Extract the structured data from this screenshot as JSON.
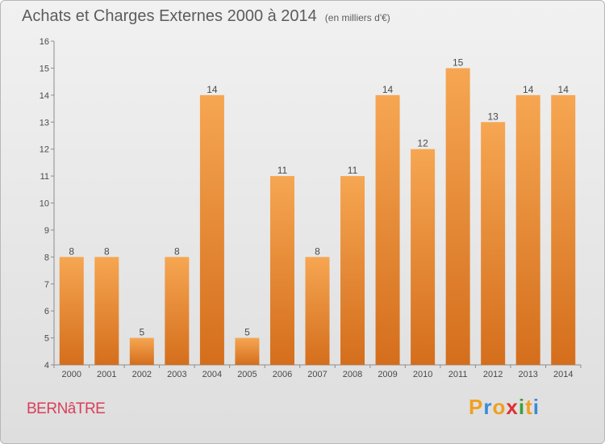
{
  "header": {
    "title": "Achats et Charges Externes 2000 à 2014",
    "unit": "(en milliers d'€)"
  },
  "footer": {
    "place": "BERNâTRE",
    "logo_letters": [
      "P",
      "r",
      "o",
      "x",
      "i",
      "t",
      "i"
    ],
    "logo_colors": [
      "#f0a020",
      "#3a8ad6",
      "#f0a020",
      "#e03030",
      "#3aa03a",
      "#f0a020",
      "#3a8ad6"
    ]
  },
  "chart_data": {
    "type": "bar",
    "title": "Achats et Charges Externes 2000 à 2014",
    "categories": [
      "2000",
      "2001",
      "2002",
      "2003",
      "2004",
      "2005",
      "2006",
      "2007",
      "2008",
      "2009",
      "2010",
      "2011",
      "2012",
      "2013",
      "2014"
    ],
    "values": [
      8,
      8,
      5,
      8,
      14,
      5,
      11,
      8,
      11,
      14,
      12,
      15,
      13,
      14,
      14
    ],
    "data_labels": [
      "8",
      "8",
      "5",
      "8",
      "14",
      "5",
      "11",
      "8",
      "11",
      "14",
      "12",
      "15",
      "13",
      "14",
      "14"
    ],
    "ylim": [
      4,
      16
    ],
    "yticks": [
      4,
      5,
      6,
      7,
      8,
      9,
      10,
      11,
      12,
      13,
      14,
      15,
      16
    ],
    "grid": false,
    "bar_color": "#f0953a"
  }
}
